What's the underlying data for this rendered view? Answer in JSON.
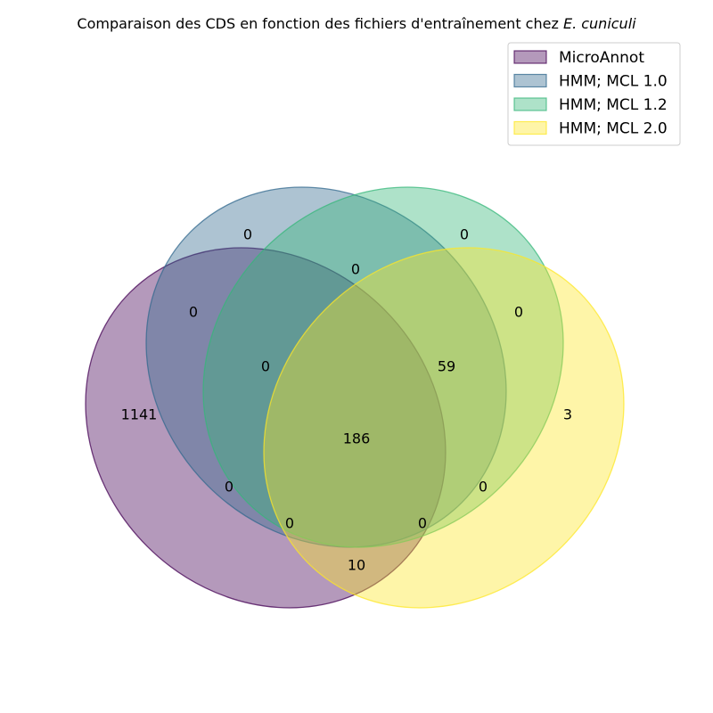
{
  "title": {
    "prefix": "Comparaison des CDS en fonction des fichiers d'entraînement chez ",
    "species": "E. cuniculi"
  },
  "sets": [
    {
      "name": "MicroAnnot",
      "color": "#440154",
      "alpha": 0.4
    },
    {
      "name": "HMM; MCL 1.0",
      "color": "#31688e",
      "alpha": 0.4
    },
    {
      "name": "HMM; MCL 1.2",
      "color": "#35b779",
      "alpha": 0.4
    },
    {
      "name": "HMM; MCL 2.0",
      "color": "#fde725",
      "alpha": 0.4
    }
  ],
  "chart_data": {
    "type": "venn",
    "sets": [
      "MicroAnnot",
      "HMM; MCL 1.0",
      "HMM; MCL 1.2",
      "HMM; MCL 2.0"
    ],
    "regions": [
      {
        "id": "A",
        "sets": [
          "MicroAnnot"
        ],
        "value": "1141"
      },
      {
        "id": "B",
        "sets": [
          "HMM; MCL 1.0"
        ],
        "value": "0"
      },
      {
        "id": "C",
        "sets": [
          "HMM; MCL 1.2"
        ],
        "value": "0"
      },
      {
        "id": "D",
        "sets": [
          "HMM; MCL 2.0"
        ],
        "value": "3"
      },
      {
        "id": "AB",
        "sets": [
          "MicroAnnot",
          "HMM; MCL 1.0"
        ],
        "value": "0"
      },
      {
        "id": "BC",
        "sets": [
          "HMM; MCL 1.0",
          "HMM; MCL 1.2"
        ],
        "value": "0"
      },
      {
        "id": "CD",
        "sets": [
          "HMM; MCL 1.2",
          "HMM; MCL 2.0"
        ],
        "value": "0"
      },
      {
        "id": "ABC",
        "sets": [
          "MicroAnnot",
          "HMM; MCL 1.0",
          "HMM; MCL 1.2"
        ],
        "value": "0"
      },
      {
        "id": "BCD",
        "sets": [
          "HMM; MCL 1.0",
          "HMM; MCL 1.2",
          "HMM; MCL 2.0"
        ],
        "value": "59"
      },
      {
        "id": "ABCD",
        "sets": [
          "MicroAnnot",
          "HMM; MCL 1.0",
          "HMM; MCL 1.2",
          "HMM; MCL 2.0"
        ],
        "value": "186"
      },
      {
        "id": "AC",
        "sets": [
          "MicroAnnot",
          "HMM; MCL 1.2"
        ],
        "value": "0"
      },
      {
        "id": "BD",
        "sets": [
          "HMM; MCL 1.0",
          "HMM; MCL 2.0"
        ],
        "value": "0"
      },
      {
        "id": "ACD",
        "sets": [
          "MicroAnnot",
          "HMM; MCL 1.2",
          "HMM; MCL 2.0"
        ],
        "value": "0"
      },
      {
        "id": "ABD",
        "sets": [
          "MicroAnnot",
          "HMM; MCL 1.0",
          "HMM; MCL 2.0"
        ],
        "value": "0"
      },
      {
        "id": "AD",
        "sets": [
          "MicroAnnot",
          "HMM; MCL 2.0"
        ],
        "value": "10"
      }
    ],
    "legend_position": "top-right"
  }
}
